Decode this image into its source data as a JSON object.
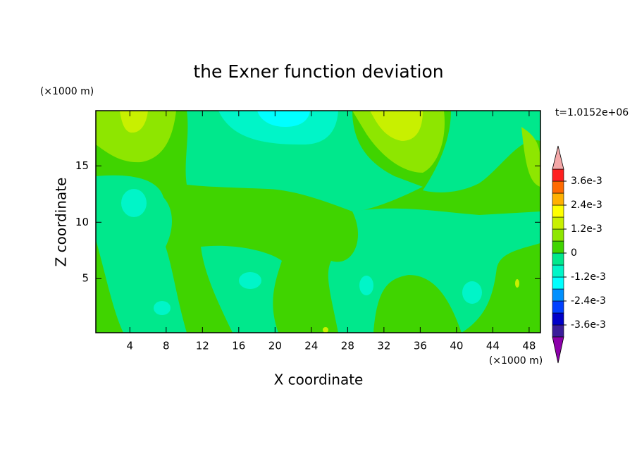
{
  "chart_data": {
    "type": "contour",
    "title": "the Exner function deviation",
    "xlabel": "X coordinate",
    "ylabel": "Z coordinate",
    "x_unit": "(×1000 m)",
    "y_unit": "(×1000 m)",
    "annotation": "t=1.0152e+06",
    "xlim": [
      0.25,
      49.25
    ],
    "ylim": [
      0.2,
      19.9
    ],
    "xticks": [
      4,
      8,
      12,
      16,
      20,
      24,
      28,
      32,
      36,
      40,
      44,
      48
    ],
    "yticks": [
      5,
      10,
      15
    ],
    "colorbar": {
      "levels": [
        -0.0042,
        -0.0036,
        -0.003,
        -0.0024,
        -0.0018,
        -0.0012,
        -0.0006,
        0,
        0.0006,
        0.0012,
        0.0018,
        0.0024,
        0.003,
        0.0036,
        0.0042
      ],
      "colors": [
        "#3a1d9a",
        "#0000c8",
        "#0040ff",
        "#0090ff",
        "#00ffff",
        "#00f5c8",
        "#00e88c",
        "#40d400",
        "#8ee600",
        "#c8f000",
        "#ffff00",
        "#ffb000",
        "#ff6a00",
        "#ff2020"
      ],
      "under_color": "#8c00aa",
      "over_color": "#f4a8a8",
      "ticks": [
        {
          "value": 0.0036,
          "label": "3.6e-3"
        },
        {
          "value": 0.0024,
          "label": "2.4e-3"
        },
        {
          "value": 0.0012,
          "label": "1.2e-3"
        },
        0,
        {
          "value": -0.0012,
          "label": "-1.2e-3"
        },
        {
          "value": -0.0024,
          "label": "-2.4e-3"
        },
        {
          "value": -0.0036,
          "label": "-3.6e-3"
        }
      ]
    }
  }
}
